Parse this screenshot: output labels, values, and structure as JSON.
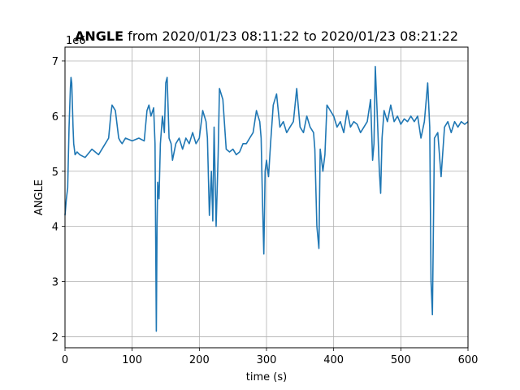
{
  "chart_data": {
    "type": "line",
    "title_bold": "ANGLE",
    "title_rest": " from 2020/01/23 08:11:22 to 2020/01/23 08:21:22",
    "xlabel": "time (s)",
    "ylabel": "ANGLE",
    "y_offset_label": "1e6",
    "xlim": [
      0,
      600
    ],
    "ylim": [
      1.8,
      7.25
    ],
    "xticks": [
      0,
      100,
      200,
      300,
      400,
      500,
      600
    ],
    "yticks": [
      2,
      3,
      4,
      5,
      6,
      7
    ],
    "grid": true,
    "line_color": "#1f77b4",
    "series": [
      {
        "x": [
          0,
          2,
          4,
          6,
          8,
          9,
          10,
          12,
          13,
          15,
          18,
          22,
          30,
          40,
          50,
          60,
          65,
          68,
          70,
          75,
          80,
          82,
          85,
          90,
          100,
          110,
          118,
          122,
          125,
          128,
          132,
          134,
          135,
          136,
          137,
          138,
          140,
          142,
          145,
          148,
          150,
          152,
          155,
          158,
          160,
          165,
          170,
          175,
          180,
          185,
          190,
          195,
          200,
          205,
          210,
          212,
          215,
          218,
          220,
          222,
          225,
          228,
          230,
          235,
          240,
          245,
          250,
          255,
          260,
          265,
          270,
          275,
          280,
          285,
          290,
          292,
          294,
          296,
          298,
          300,
          303,
          306,
          310,
          315,
          320,
          325,
          330,
          335,
          340,
          345,
          350,
          355,
          360,
          365,
          370,
          372,
          375,
          378,
          380,
          382,
          384,
          387,
          390,
          395,
          400,
          405,
          410,
          415,
          420,
          425,
          430,
          435,
          440,
          445,
          450,
          455,
          458,
          460,
          462,
          465,
          468,
          470,
          472,
          475,
          480,
          485,
          490,
          495,
          500,
          505,
          510,
          515,
          520,
          525,
          530,
          535,
          540,
          543,
          545,
          547,
          550,
          555,
          560,
          565,
          570,
          575,
          580,
          585,
          590,
          595,
          600
        ],
        "y": [
          4.2,
          4.5,
          4.7,
          5.8,
          6.5,
          6.7,
          6.6,
          5.8,
          5.5,
          5.3,
          5.35,
          5.3,
          5.25,
          5.4,
          5.3,
          5.5,
          5.6,
          6.0,
          6.2,
          6.1,
          5.6,
          5.55,
          5.5,
          5.6,
          5.55,
          5.6,
          5.55,
          6.1,
          6.2,
          6.0,
          6.15,
          5.5,
          3.8,
          2.1,
          4.0,
          4.8,
          4.5,
          5.5,
          6.0,
          5.7,
          6.6,
          6.7,
          5.6,
          5.5,
          5.2,
          5.5,
          5.6,
          5.4,
          5.6,
          5.5,
          5.7,
          5.5,
          5.6,
          6.1,
          5.9,
          5.6,
          4.2,
          5.0,
          4.1,
          5.8,
          4.0,
          5.3,
          6.5,
          6.3,
          5.4,
          5.35,
          5.4,
          5.3,
          5.35,
          5.5,
          5.5,
          5.6,
          5.7,
          6.1,
          5.9,
          5.6,
          4.5,
          3.5,
          5.0,
          5.2,
          4.9,
          5.5,
          6.2,
          6.4,
          5.8,
          5.9,
          5.7,
          5.8,
          5.9,
          6.5,
          5.8,
          5.7,
          6.0,
          5.8,
          5.7,
          5.4,
          4.0,
          3.6,
          5.4,
          5.2,
          5.0,
          5.3,
          6.2,
          6.1,
          6.0,
          5.8,
          5.9,
          5.7,
          6.1,
          5.8,
          5.9,
          5.85,
          5.7,
          5.8,
          5.9,
          6.3,
          5.2,
          5.5,
          6.9,
          6.0,
          5.0,
          4.6,
          5.6,
          6.1,
          5.9,
          6.2,
          5.9,
          6.0,
          5.85,
          5.95,
          5.9,
          6.0,
          5.9,
          6.0,
          5.6,
          5.9,
          6.6,
          5.8,
          3.0,
          2.4,
          5.6,
          5.7,
          4.9,
          5.8,
          5.9,
          5.7,
          5.9,
          5.8,
          5.9,
          5.85,
          5.9
        ]
      }
    ]
  }
}
